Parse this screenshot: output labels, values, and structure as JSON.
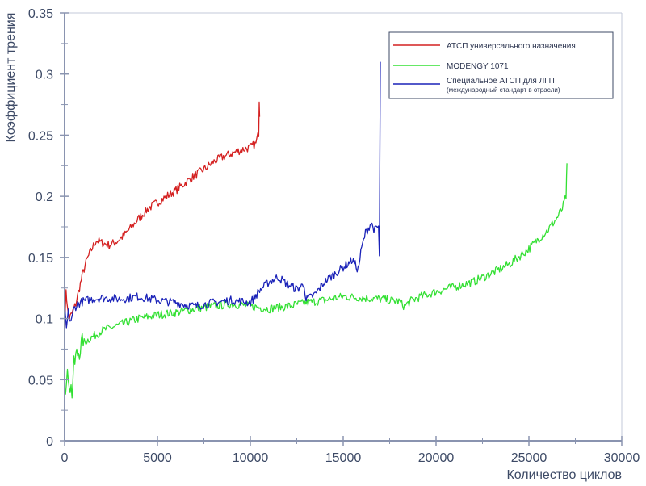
{
  "chart_data": {
    "type": "line",
    "title": "",
    "xlabel": "Количество циклов",
    "ylabel": "Коэффициент трения",
    "xlim": [
      0,
      30000
    ],
    "ylim": [
      0,
      0.35
    ],
    "x_ticks": [
      0,
      5000,
      10000,
      15000,
      20000,
      25000,
      30000
    ],
    "x_tick_labels": [
      "0",
      "5000",
      "10000",
      "15000",
      "20000",
      "25000",
      "30000"
    ],
    "y_ticks": [
      0,
      0.05,
      0.1,
      0.15,
      0.2,
      0.25,
      0.3,
      0.35
    ],
    "y_tick_labels": [
      "0",
      "0.05",
      "0.1",
      "0.15",
      "0.2",
      "0.25",
      "0.3",
      "0.35"
    ],
    "grid": false,
    "legend_position": "top-right",
    "series": [
      {
        "name": "АТСП универсального назначения",
        "color": "#d42020",
        "x": [
          0,
          80,
          150,
          250,
          400,
          600,
          800,
          1000,
          1200,
          1500,
          1700,
          2000,
          2400,
          2800,
          3200,
          3600,
          4000,
          4500,
          5000,
          5500,
          6000,
          6500,
          7000,
          7500,
          8000,
          8500,
          9000,
          9500,
          10000,
          10300,
          10450,
          10480,
          10500
        ],
        "y": [
          0.085,
          0.125,
          0.108,
          0.1,
          0.104,
          0.112,
          0.125,
          0.138,
          0.148,
          0.158,
          0.164,
          0.162,
          0.16,
          0.163,
          0.168,
          0.175,
          0.182,
          0.19,
          0.195,
          0.2,
          0.205,
          0.211,
          0.217,
          0.222,
          0.228,
          0.232,
          0.235,
          0.238,
          0.24,
          0.243,
          0.252,
          0.28,
          0.265
        ]
      },
      {
        "name": "MODENGY 1071",
        "color": "#33e033",
        "x": [
          0,
          100,
          200,
          300,
          400,
          500,
          600,
          800,
          1000,
          1500,
          2000,
          3000,
          4000,
          5000,
          6000,
          7000,
          8000,
          9000,
          10000,
          11000,
          12000,
          13000,
          14000,
          15000,
          16000,
          17000,
          18000,
          18300,
          18600,
          19000,
          20000,
          21000,
          22000,
          23000,
          24000,
          25000,
          25500,
          26000,
          26500,
          26800,
          27000,
          27050
        ],
        "y": [
          0.05,
          0.045,
          0.055,
          0.045,
          0.04,
          0.06,
          0.068,
          0.075,
          0.08,
          0.085,
          0.09,
          0.095,
          0.1,
          0.103,
          0.105,
          0.108,
          0.11,
          0.112,
          0.11,
          0.108,
          0.11,
          0.113,
          0.115,
          0.118,
          0.117,
          0.116,
          0.114,
          0.11,
          0.114,
          0.117,
          0.122,
          0.126,
          0.13,
          0.137,
          0.145,
          0.157,
          0.165,
          0.172,
          0.182,
          0.19,
          0.2,
          0.227
        ]
      },
      {
        "name": "Специальное АТСП для ЛГП",
        "subtitle": "(международный стандарт в отрасли)",
        "color": "#1a22b8",
        "x": [
          0,
          100,
          200,
          300,
          400,
          500,
          700,
          1000,
          1500,
          2000,
          3000,
          4000,
          5000,
          6000,
          7000,
          8000,
          9000,
          10000,
          10500,
          11000,
          11500,
          12000,
          12500,
          12900,
          13000,
          13500,
          14000,
          14500,
          15000,
          15500,
          15800,
          16000,
          16200,
          16500,
          16700,
          16900,
          16950,
          17000
        ],
        "y": [
          0.108,
          0.092,
          0.105,
          0.098,
          0.1,
          0.108,
          0.112,
          0.114,
          0.116,
          0.117,
          0.116,
          0.118,
          0.115,
          0.113,
          0.11,
          0.113,
          0.115,
          0.113,
          0.123,
          0.13,
          0.134,
          0.128,
          0.124,
          0.128,
          0.115,
          0.12,
          0.13,
          0.136,
          0.142,
          0.148,
          0.14,
          0.158,
          0.17,
          0.178,
          0.172,
          0.175,
          0.15,
          0.31
        ]
      }
    ]
  }
}
